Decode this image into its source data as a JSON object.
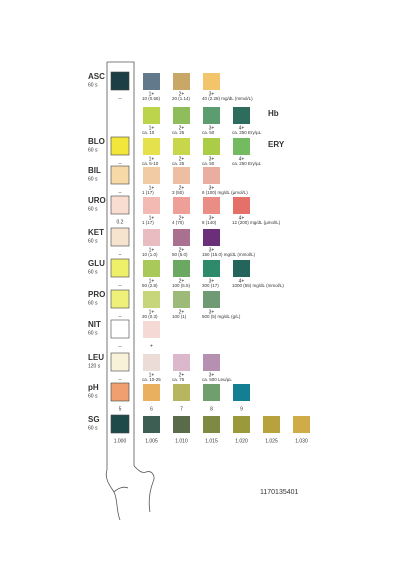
{
  "rows": [
    {
      "name": "ASC",
      "time": "60 s",
      "strip": {
        "color": "#1d3e45",
        "grade": "–"
      },
      "levels": [
        {
          "color": "#61798a",
          "grade": "1+",
          "value": "10 (0.56)"
        },
        {
          "color": "#c9a766",
          "grade": "2+",
          "value": "20 (1.14)"
        },
        {
          "color": "#f2c46c",
          "grade": "3+",
          "value": "40 (2.28) mg/dL (mmol/L)"
        }
      ]
    },
    {
      "side_label": "Hb",
      "levels": [
        {
          "color": "#bcd44c",
          "grade": "1+",
          "value": "ca. 10"
        },
        {
          "color": "#8fbd5b",
          "grade": "2+",
          "value": "ca. 25"
        },
        {
          "color": "#5c9d70",
          "grade": "3+",
          "value": "ca. 50"
        },
        {
          "color": "#2e6c5e",
          "grade": "4+",
          "value": "ca. 250 Ery/µL"
        }
      ]
    },
    {
      "name": "BLO",
      "time": "60 s",
      "side_label": "ERY",
      "strip": {
        "color": "#f3e63a",
        "grade": "–"
      },
      "levels": [
        {
          "color": "#e4e14c",
          "grade": "1+",
          "value": "ca. 5-10"
        },
        {
          "color": "#c7d64b",
          "grade": "2+",
          "value": "ca. 25"
        },
        {
          "color": "#abcc47",
          "grade": "3+",
          "value": "ca. 50"
        },
        {
          "color": "#74ba60",
          "grade": "4+",
          "value": "ca. 250 Ery/µL"
        }
      ]
    },
    {
      "name": "BIL",
      "time": "60 s",
      "strip": {
        "color": "#f6d9a7",
        "grade": "–"
      },
      "levels": [
        {
          "color": "#f0cba3",
          "grade": "1+",
          "value": "1 (17)"
        },
        {
          "color": "#eebea3",
          "grade": "2+",
          "value": "3 (50)"
        },
        {
          "color": "#e9ae9f",
          "grade": "3+",
          "value": "6 (100) mg/dL (µmol/L)"
        }
      ]
    },
    {
      "name": "URO",
      "time": "60 s",
      "strip": {
        "color": "#f8ddd0",
        "grade": "0.2"
      },
      "levels": [
        {
          "color": "#f2bab3",
          "grade": "1+",
          "value": "1 (17)"
        },
        {
          "color": "#ee9f98",
          "grade": "2+",
          "value": "4 (70)"
        },
        {
          "color": "#ea8d85",
          "grade": "3+",
          "value": "8 (140)"
        },
        {
          "color": "#e56f69",
          "grade": "4+",
          "value": "12 (200) mg/dL (µmol/L)"
        }
      ]
    },
    {
      "name": "KET",
      "time": "60 s",
      "strip": {
        "color": "#f6e4cf",
        "grade": "–"
      },
      "levels": [
        {
          "color": "#e8bcc0",
          "grade": "1+",
          "value": "10 (1.0)"
        },
        {
          "color": "#a9708f",
          "grade": "2+",
          "value": "50 (5.0)"
        },
        {
          "color": "#6a2f78",
          "grade": "3+",
          "value": "150 (15.0) mg/dL (mmol/L)"
        }
      ]
    },
    {
      "name": "GLU",
      "time": "60 s",
      "strip": {
        "color": "#eef06a",
        "grade": "–"
      },
      "levels": [
        {
          "color": "#a9c95a",
          "grade": "1+",
          "value": "50 (2.8)"
        },
        {
          "color": "#6ba862",
          "grade": "2+",
          "value": "100 (5.5)"
        },
        {
          "color": "#2f8a6b",
          "grade": "3+",
          "value": "300 (17)"
        },
        {
          "color": "#23655a",
          "grade": "4+",
          "value": "1000 (55) mg/dL (mmol/L)"
        }
      ]
    },
    {
      "name": "PRO",
      "time": "60 s",
      "strip": {
        "color": "#eef07a",
        "grade": "–"
      },
      "levels": [
        {
          "color": "#c7d67b",
          "grade": "1+",
          "value": "30 (0.3)"
        },
        {
          "color": "#9dba78",
          "grade": "2+",
          "value": "100 (1)"
        },
        {
          "color": "#6e9b73",
          "grade": "3+",
          "value": "500 (5) mg/dL (g/L)"
        }
      ]
    },
    {
      "name": "NIT",
      "time": "60 s",
      "strip": {
        "color": "#ffffff",
        "grade": "–"
      },
      "levels": [
        {
          "color": "#f5d9d4",
          "grade": "+"
        }
      ]
    },
    {
      "name": "LEU",
      "time": "120 s",
      "strip": {
        "color": "#f8f2d8",
        "grade": "–"
      },
      "levels": [
        {
          "color": "#ecdcd7",
          "grade": "1+",
          "value": "ca. 10-25"
        },
        {
          "color": "#dbb8cc",
          "grade": "2+",
          "value": "ca. 75"
        },
        {
          "color": "#b590b0",
          "grade": "3+",
          "value": "ca. 500 Leu/µL"
        }
      ]
    },
    {
      "name": "pH",
      "time": "60 s",
      "strip": {
        "color": "#f0a070",
        "grade": "5"
      },
      "levels": [
        {
          "color": "#e9b060",
          "grade": "6"
        },
        {
          "color": "#b7b560",
          "grade": "7"
        },
        {
          "color": "#6f9f6c",
          "grade": "8"
        },
        {
          "color": "#137f92",
          "grade": "9"
        }
      ]
    },
    {
      "name": "SG",
      "time": "60 s",
      "strip": {
        "color": "#1f4a4a",
        "grade": "1.000"
      },
      "levels": [
        {
          "color": "#3d5e53",
          "grade": "1.005"
        },
        {
          "color": "#5a6b49",
          "grade": "1.010"
        },
        {
          "color": "#7e8a42",
          "grade": "1.015"
        },
        {
          "color": "#9b9a3a",
          "grade": "1.020"
        },
        {
          "color": "#b8a23e",
          "grade": "1.025"
        },
        {
          "color": "#cfac48",
          "grade": "1.030"
        }
      ]
    }
  ],
  "code": "1170135401"
}
